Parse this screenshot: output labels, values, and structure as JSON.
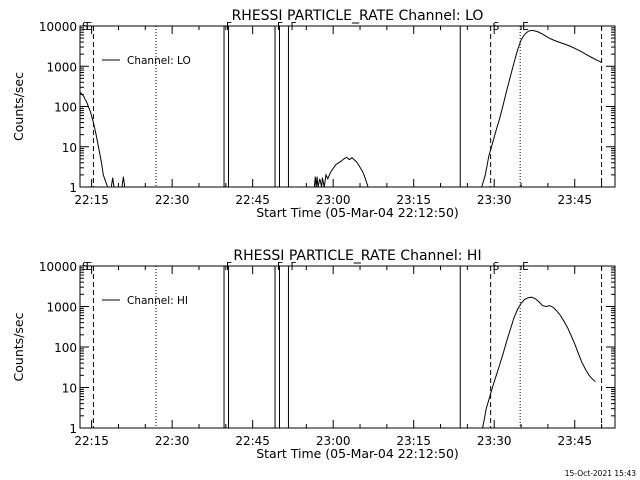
{
  "footer": {
    "timestamp": "15-Oct-2021 15:43"
  },
  "chart_data": [
    {
      "type": "line",
      "title": "RHESSI PARTICLE_RATE Channel: LO",
      "xlabel": "Start Time (05-Mar-04 22:12:50)",
      "ylabel": "Counts/sec",
      "yscale": "log",
      "xlim": [
        "22:12:50",
        "23:52:30"
      ],
      "ylim": [
        1,
        10000
      ],
      "xticks": [
        "22:15",
        "22:30",
        "22:45",
        "23:00",
        "23:15",
        "23:30",
        "23:45"
      ],
      "yticks": [
        "1",
        "10",
        "100",
        "1000",
        "10000"
      ],
      "grid": false,
      "legend": {
        "position": "top-left",
        "entries": [
          "Channel: LO"
        ]
      },
      "series": [
        {
          "name": "Channel: LO",
          "color": "#000000",
          "segments": [
            [
              [
                "22:12:50",
                230
              ],
              [
                "22:13:30",
                180
              ],
              [
                "22:14:10",
                120
              ],
              [
                "22:14:50",
                70
              ],
              [
                "22:15:20",
                40
              ],
              [
                "22:15:50",
                20
              ],
              [
                "22:16:20",
                9
              ],
              [
                "22:16:50",
                4
              ],
              [
                "22:17:10",
                2
              ],
              [
                "22:17:40",
                1.3
              ],
              [
                "22:18:00",
                1
              ]
            ],
            [
              [
                "22:18:40",
                1
              ],
              [
                "22:18:55",
                1.7
              ],
              [
                "22:19:10",
                1
              ]
            ],
            [
              [
                "22:20:40",
                1
              ],
              [
                "22:20:55",
                1.8
              ],
              [
                "22:21:10",
                1
              ]
            ],
            [
              [
                "22:56:30",
                1
              ],
              [
                "22:56:40",
                1.8
              ],
              [
                "22:56:50",
                1
              ],
              [
                "22:57:00",
                1.8
              ],
              [
                "22:57:10",
                1
              ],
              [
                "22:57:30",
                1.6
              ],
              [
                "22:57:50",
                1
              ],
              [
                "22:58:00",
                1.7
              ],
              [
                "22:58:20",
                1
              ],
              [
                "22:58:40",
                2.0
              ],
              [
                "22:59:00",
                1.6
              ],
              [
                "22:59:30",
                2.3
              ],
              [
                "23:00:00",
                2.9
              ],
              [
                "23:00:30",
                3.6
              ],
              [
                "23:01:00",
                4.0
              ],
              [
                "23:01:30",
                4.4
              ],
              [
                "23:02:00",
                5.0
              ],
              [
                "23:02:30",
                5.5
              ],
              [
                "23:03:00",
                4.8
              ],
              [
                "23:03:30",
                5.3
              ],
              [
                "23:04:00",
                4.6
              ],
              [
                "23:04:30",
                4.0
              ],
              [
                "23:05:00",
                3.1
              ],
              [
                "23:05:30",
                2.4
              ],
              [
                "23:06:00",
                1.6
              ],
              [
                "23:06:30",
                1
              ]
            ],
            [
              [
                "23:27:40",
                1
              ],
              [
                "23:28:20",
                2
              ],
              [
                "23:29:00",
                6
              ],
              [
                "23:29:40",
                12
              ],
              [
                "23:30:20",
                25
              ],
              [
                "23:31:00",
                50
              ],
              [
                "23:31:40",
                110
              ],
              [
                "23:32:20",
                250
              ],
              [
                "23:33:00",
                550
              ],
              [
                "23:33:40",
                1200
              ],
              [
                "23:34:20",
                2500
              ],
              [
                "23:35:00",
                4500
              ],
              [
                "23:35:40",
                6200
              ],
              [
                "23:36:20",
                7400
              ],
              [
                "23:37:00",
                7800
              ],
              [
                "23:38:00",
                7300
              ],
              [
                "23:39:00",
                6300
              ],
              [
                "23:40:00",
                5200
              ],
              [
                "23:41:00",
                4500
              ],
              [
                "23:42:00",
                4000
              ],
              [
                "23:43:00",
                3600
              ],
              [
                "23:44:00",
                3200
              ],
              [
                "23:45:00",
                2800
              ],
              [
                "23:46:00",
                2400
              ],
              [
                "23:47:00",
                2000
              ],
              [
                "23:48:00",
                1700
              ],
              [
                "23:49:00",
                1450
              ],
              [
                "23:50:00",
                1250
              ]
            ]
          ]
        }
      ],
      "markers": {
        "dashed": [
          "22:15:20",
          "23:29:20",
          "23:50:00"
        ],
        "dotted": [
          "22:27:00",
          "23:34:50"
        ],
        "solid": [
          "22:39:40",
          "22:40:30",
          "22:49:10",
          "22:50:00",
          "22:51:40",
          "23:23:40"
        ]
      },
      "flags": [
        {
          "label": "S",
          "x": "22:12:50"
        },
        {
          "label": "E",
          "x": "22:13:30"
        },
        {
          "label": "F",
          "x": "22:39:40"
        },
        {
          "label": "F",
          "x": "22:49:10"
        },
        {
          "label": "F",
          "x": "22:51:40"
        },
        {
          "label": "S",
          "x": "23:29:20"
        },
        {
          "label": "E",
          "x": "23:34:50"
        }
      ]
    },
    {
      "type": "line",
      "title": "RHESSI PARTICLE_RATE Channel: HI",
      "xlabel": "Start Time (05-Mar-04 22:12:50)",
      "ylabel": "Counts/sec",
      "yscale": "log",
      "xlim": [
        "22:12:50",
        "23:52:30"
      ],
      "ylim": [
        1,
        10000
      ],
      "xticks": [
        "22:15",
        "22:30",
        "22:45",
        "23:00",
        "23:15",
        "23:30",
        "23:45"
      ],
      "yticks": [
        "1",
        "10",
        "100",
        "1000",
        "10000"
      ],
      "grid": false,
      "legend": {
        "position": "top-left",
        "entries": [
          "Channel: HI"
        ]
      },
      "series": [
        {
          "name": "Channel: HI",
          "color": "#000000",
          "segments": [
            [
              [
                "23:27:50",
                1
              ],
              [
                "23:28:10",
                1.7
              ],
              [
                "23:28:30",
                3
              ],
              [
                "23:29:00",
                5
              ],
              [
                "23:29:40",
                10
              ],
              [
                "23:30:20",
                19
              ],
              [
                "23:31:00",
                36
              ],
              [
                "23:31:40",
                70
              ],
              [
                "23:32:20",
                140
              ],
              [
                "23:33:00",
                270
              ],
              [
                "23:33:40",
                520
              ],
              [
                "23:34:20",
                850
              ],
              [
                "23:35:00",
                1200
              ],
              [
                "23:35:40",
                1500
              ],
              [
                "23:36:20",
                1650
              ],
              [
                "23:37:00",
                1700
              ],
              [
                "23:37:40",
                1550
              ],
              [
                "23:38:20",
                1300
              ],
              [
                "23:39:00",
                1050
              ],
              [
                "23:39:40",
                1000
              ],
              [
                "23:40:20",
                1050
              ],
              [
                "23:41:00",
                950
              ],
              [
                "23:41:40",
                780
              ],
              [
                "23:42:20",
                600
              ],
              [
                "23:43:00",
                430
              ],
              [
                "23:43:40",
                300
              ],
              [
                "23:44:20",
                190
              ],
              [
                "23:45:00",
                120
              ],
              [
                "23:45:40",
                70
              ],
              [
                "23:46:20",
                42
              ],
              [
                "23:47:00",
                28
              ],
              [
                "23:47:40",
                20
              ],
              [
                "23:48:20",
                16
              ],
              [
                "23:48:50",
                14
              ]
            ]
          ]
        }
      ],
      "markers": {
        "dashed": [
          "22:15:20",
          "23:29:20",
          "23:50:00"
        ],
        "dotted": [
          "22:27:00",
          "23:34:50"
        ],
        "solid": [
          "22:39:40",
          "22:40:30",
          "22:49:10",
          "22:50:00",
          "22:51:40",
          "23:23:40"
        ]
      },
      "flags": [
        {
          "label": "S",
          "x": "22:12:50"
        },
        {
          "label": "E",
          "x": "22:13:30"
        },
        {
          "label": "F",
          "x": "22:39:40"
        },
        {
          "label": "F",
          "x": "22:49:10"
        },
        {
          "label": "F",
          "x": "22:51:40"
        },
        {
          "label": "S",
          "x": "23:29:20"
        },
        {
          "label": "E",
          "x": "23:34:50"
        }
      ]
    }
  ]
}
